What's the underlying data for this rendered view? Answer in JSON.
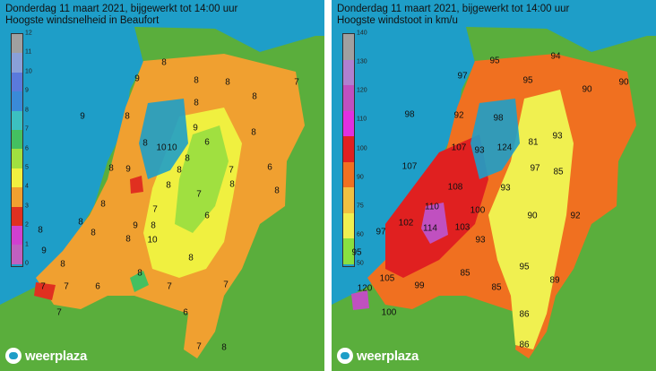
{
  "panels": [
    {
      "title_line1": "Donderdag 11 maart 2021, bijgewerkt tot 14:00 uur",
      "title_line2": "Hoogste windsnelheid in Beaufort",
      "legend_ticks": [
        "12",
        "11",
        "10",
        "9",
        "8",
        "7",
        "6",
        "5",
        "4",
        "3",
        "2",
        "1",
        "0"
      ],
      "legend_colors": [
        "#a0a0a0",
        "#8aa0d8",
        "#5a7adc",
        "#3a8ad8",
        "#3cc0c0",
        "#44c060",
        "#a0e040",
        "#f0f040",
        "#f0a030",
        "#e03020",
        "#d040d0",
        "#c060c0"
      ],
      "values": [
        "8",
        "8",
        "9",
        "9",
        "8",
        "8",
        "8",
        "7",
        "8",
        "9",
        "8",
        "8",
        "10",
        "10",
        "6",
        "8",
        "8",
        "9",
        "8",
        "7",
        "6",
        "8",
        "8",
        "7",
        "8",
        "7",
        "6",
        "8",
        "8",
        "8",
        "9",
        "8",
        "8",
        "9",
        "10",
        "8",
        "8",
        "8",
        "7",
        "7",
        "6",
        "7",
        "7",
        "7",
        "6",
        "7",
        "8",
        "8"
      ],
      "logo_text": "weerplaza"
    },
    {
      "title_line1": "Donderdag 11 maart 2021, bijgewerkt tot 14:00 uur",
      "title_line2": "Hoogste windstoot in km/u",
      "legend_ticks": [
        "140",
        "130",
        "120",
        "110",
        "100",
        "90",
        "75",
        "60",
        "50"
      ],
      "legend_colors": [
        "#a0a0a0",
        "#b080d0",
        "#c050c0",
        "#e030e0",
        "#e02020",
        "#f07020",
        "#f0c040",
        "#f0f050",
        "#88e040"
      ],
      "values": [
        "95",
        "94",
        "97",
        "95",
        "90",
        "90",
        "98",
        "92",
        "98",
        "107",
        "93",
        "124",
        "81",
        "93",
        "107",
        "97",
        "85",
        "108",
        "93",
        "110",
        "100",
        "90",
        "92",
        "102",
        "114",
        "103",
        "93",
        "97",
        "95",
        "85",
        "95",
        "85",
        "89",
        "120",
        "105",
        "99",
        "86",
        "100",
        "86"
      ],
      "logo_text": "weerplaza"
    }
  ]
}
